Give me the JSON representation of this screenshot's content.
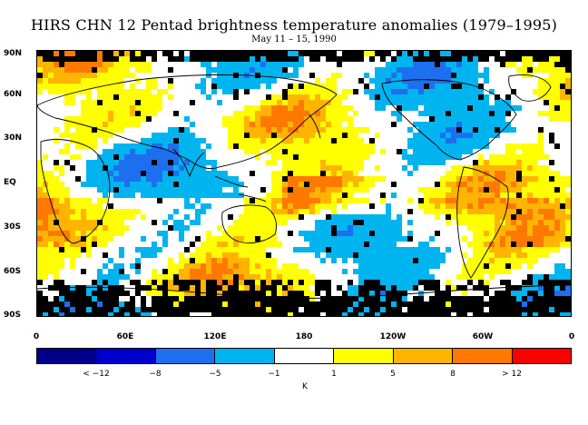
{
  "title": "HIRS CHN 12 Pentad brightness temperature anomalies (1979–1995)",
  "subtitle": "May 11 – 15, 1990",
  "y_axis_labels": [
    "90N",
    "60N",
    "30N",
    "EQ",
    "30S",
    "60S",
    "90S"
  ],
  "x_axis_labels": [
    "0",
    "60E",
    "120E",
    "180",
    "120W",
    "60W",
    "0"
  ],
  "colorbar": {
    "unit": "K",
    "boxes": [
      {
        "color": "#00008b"
      },
      {
        "color": "#0000cd"
      },
      {
        "color": "#1e6ef0"
      },
      {
        "color": "#00b4f0"
      },
      {
        "color": "#ffffff"
      },
      {
        "color": "#ffff00"
      },
      {
        "color": "#ffb400"
      },
      {
        "color": "#ff7800"
      },
      {
        "color": "#ff0000"
      }
    ],
    "labels": [
      "< −12",
      "−8",
      "−5",
      "−1",
      "1",
      "5",
      "8",
      "> 12"
    ]
  },
  "legend_colors": {
    "neg_strong": "#1e6ef0",
    "neg_weak": "#00b4f0",
    "pos_weak": "#ffff00",
    "pos_mid": "#ffb400",
    "pos_strong": "#ff7800",
    "missing": "#000000"
  }
}
